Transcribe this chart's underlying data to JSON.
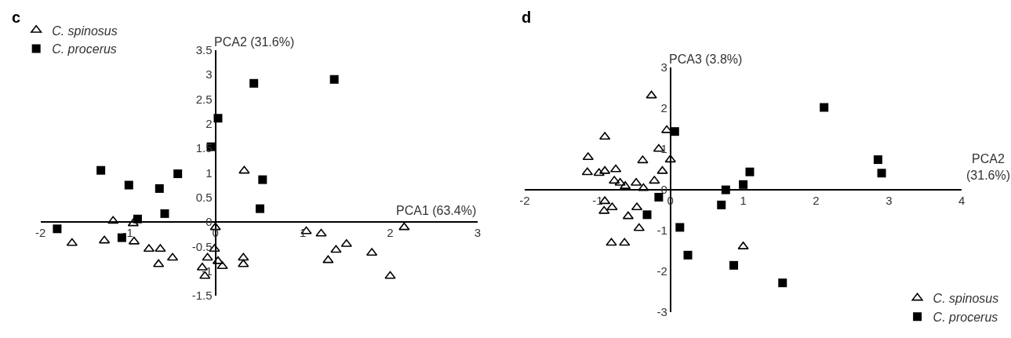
{
  "chart_data": [
    {
      "type": "scatter",
      "title": "c",
      "xlabel": "PCA1 (63.4%)",
      "ylabel": "PCA2 (31.6%)",
      "xlim": [
        -2,
        3
      ],
      "ylim": [
        -1.5,
        3.5
      ],
      "xticks": [
        -2,
        -1,
        0,
        1,
        2,
        3
      ],
      "yticks": [
        -1.5,
        -1,
        -0.5,
        0,
        0.5,
        1,
        1.5,
        2,
        2.5,
        3,
        3.5
      ],
      "legend": "top left",
      "series": [
        {
          "name": "C. spinosus",
          "color": "#000000",
          "marker": "triangle",
          "x": [
            -1.64,
            -1.27,
            -1.17,
            -0.94,
            -0.93,
            -0.76,
            -0.63,
            -0.65,
            -0.49,
            0.0,
            -0.09,
            -0.15,
            -0.12,
            -0.01,
            0.03,
            0.08,
            0.32,
            0.32,
            0.33,
            1.04,
            1.21,
            1.5,
            1.38,
            1.29,
            1.79,
            2.16,
            2.0
          ],
          "values": [
            -0.43,
            -0.38,
            0.02,
            -0.03,
            -0.4,
            -0.55,
            -0.55,
            -0.86,
            -0.73,
            -0.11,
            -0.73,
            -0.93,
            -1.1,
            -0.55,
            -0.8,
            -0.9,
            -0.73,
            -0.86,
            1.04,
            -0.19,
            -0.24,
            -0.45,
            -0.57,
            -0.78,
            -0.63,
            -0.11,
            -1.1
          ]
        },
        {
          "name": "C. procerus",
          "color": "#000000",
          "marker": "square",
          "x": [
            -1.81,
            -1.31,
            -0.99,
            -0.64,
            -0.58,
            -0.89,
            -1.07,
            -0.43,
            -0.05,
            0.03,
            0.44,
            1.36,
            0.54,
            0.51
          ],
          "values": [
            -0.14,
            1.05,
            0.75,
            0.68,
            0.17,
            0.06,
            -0.32,
            0.98,
            1.53,
            2.11,
            2.82,
            2.9,
            0.86,
            0.27
          ]
        }
      ]
    },
    {
      "type": "scatter",
      "title": "d",
      "xlabel": "PCA2 (31.6%)",
      "ylabel": "PCA3 (3.8%)",
      "xlim": [
        -2,
        4
      ],
      "ylim": [
        -3,
        3
      ],
      "xticks": [
        -2,
        -1,
        0,
        1,
        2,
        3,
        4
      ],
      "yticks": [
        -3,
        -2,
        -1,
        0,
        1,
        2,
        3
      ],
      "legend": "bottom right",
      "series": [
        {
          "name": "C. spinosus",
          "color": "#000000",
          "marker": "triangle",
          "x": [
            -0.26,
            -0.9,
            -1.13,
            -1.14,
            -0.98,
            -0.9,
            -0.75,
            -0.77,
            -0.69,
            -0.62,
            -0.47,
            -0.38,
            -0.16,
            -0.05,
            0.0,
            -0.11,
            -0.22,
            -0.37,
            -0.9,
            -0.8,
            -0.91,
            -0.46,
            -0.58,
            -0.43,
            -0.81,
            -0.63,
            1.0
          ],
          "values": [
            2.31,
            1.3,
            0.8,
            0.43,
            0.41,
            0.46,
            0.5,
            0.22,
            0.17,
            0.09,
            0.17,
            0.72,
            1.0,
            1.46,
            0.74,
            0.46,
            0.22,
            0.04,
            -0.28,
            -0.43,
            -0.52,
            -0.43,
            -0.65,
            -0.94,
            -1.3,
            -1.3,
            -1.39
          ]
        },
        {
          "name": "C. procerus",
          "color": "#000000",
          "marker": "square",
          "x": [
            0.06,
            -0.16,
            -0.32,
            0.13,
            0.24,
            0.76,
            0.7,
            1.0,
            1.09,
            0.87,
            2.11,
            2.85,
            2.9,
            1.54
          ],
          "values": [
            1.43,
            -0.18,
            -0.61,
            -0.92,
            -1.6,
            0.0,
            -0.37,
            0.13,
            0.44,
            -1.85,
            2.02,
            0.74,
            0.41,
            -2.28
          ]
        }
      ]
    }
  ]
}
